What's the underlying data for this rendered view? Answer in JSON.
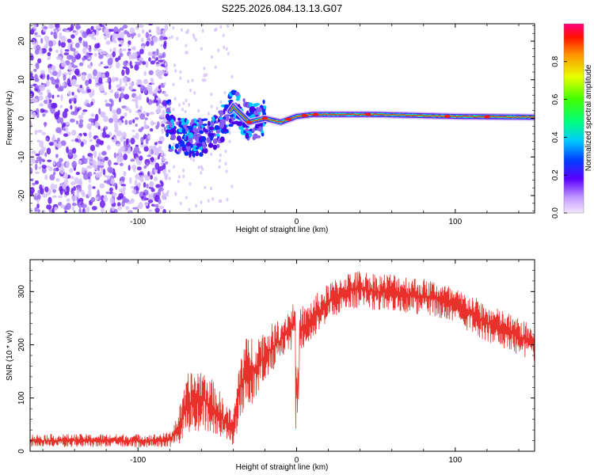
{
  "title": "S225.2026.084.13.13.G07",
  "chart_data": [
    {
      "type": "heatmap",
      "xlabel": "Height of straight line (km)",
      "ylabel": "Frequency (Hz)",
      "xlim": [
        -168,
        150
      ],
      "ylim": [
        -24.5,
        24.5
      ],
      "xticks": [
        -100,
        0,
        100
      ],
      "yticks": [
        -20,
        -10,
        0,
        10,
        20
      ],
      "colorbar": {
        "label": "Normalized spectral amplitude",
        "range": [
          0,
          1
        ],
        "ticks": [
          0.0,
          0.2,
          0.4,
          0.6,
          0.8
        ]
      },
      "ridge": [
        {
          "x": -80,
          "f": -4
        },
        {
          "x": -70,
          "f": -5
        },
        {
          "x": -60,
          "f": -5
        },
        {
          "x": -50,
          "f": -3
        },
        {
          "x": -45,
          "f": 0
        },
        {
          "x": -40,
          "f": 3
        },
        {
          "x": -35,
          "f": 1
        },
        {
          "x": -30,
          "f": -1
        },
        {
          "x": -20,
          "f": 0
        },
        {
          "x": -10,
          "f": -1
        },
        {
          "x": 0,
          "f": 0.5
        },
        {
          "x": 10,
          "f": 1
        },
        {
          "x": 50,
          "f": 1
        },
        {
          "x": 100,
          "f": 0.5
        },
        {
          "x": 150,
          "f": 0.3
        }
      ]
    },
    {
      "type": "line",
      "xlabel": "Height of straight line (km)",
      "ylabel": "SNR (10 * v/v)",
      "xlim": [
        -168,
        150
      ],
      "ylim": [
        0,
        360
      ],
      "xticks": [
        -100,
        0,
        100
      ],
      "yticks": [
        0,
        100,
        200,
        300
      ],
      "series": [
        {
          "name": "SNR",
          "color": "#e8312a",
          "x": [
            -168,
            -140,
            -110,
            -90,
            -80,
            -75,
            -68,
            -60,
            -52,
            -45,
            -40,
            -35,
            -30,
            -25,
            -20,
            -10,
            -5,
            0,
            5,
            10,
            20,
            30,
            40,
            50,
            60,
            70,
            80,
            90,
            100,
            110,
            120,
            130,
            140,
            150
          ],
          "mean": [
            20,
            20,
            20,
            20,
            22,
            40,
            90,
            100,
            80,
            55,
            40,
            130,
            150,
            160,
            180,
            210,
            230,
            240,
            230,
            250,
            280,
            300,
            305,
            300,
            300,
            295,
            290,
            285,
            270,
            260,
            240,
            230,
            215,
            200
          ],
          "spread": [
            12,
            12,
            12,
            12,
            14,
            30,
            60,
            60,
            50,
            40,
            30,
            70,
            70,
            60,
            50,
            40,
            40,
            50,
            40,
            40,
            35,
            35,
            35,
            35,
            35,
            35,
            35,
            35,
            35,
            35,
            35,
            35,
            35,
            35
          ]
        }
      ]
    }
  ]
}
